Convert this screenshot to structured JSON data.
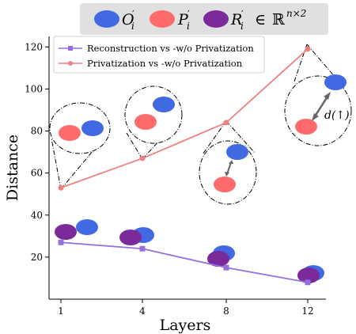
{
  "chart_data": {
    "type": "line",
    "categories": [
      "1",
      "4",
      "8",
      "12"
    ],
    "xlabel": "Layers",
    "ylabel": "Distance",
    "ylim": [
      0,
      125
    ],
    "yticks": [
      "20",
      "40",
      "60",
      "80",
      "100",
      "120"
    ],
    "legend_position": "top-left",
    "series": [
      {
        "name": "Reconstruction vs -w/o Privatization",
        "values": [
          27,
          24,
          15,
          8
        ],
        "color": "#9370DB",
        "marker": "square"
      },
      {
        "name": "Privatization vs -w/o Privatization",
        "values": [
          53,
          67,
          84,
          119
        ],
        "color": "#F08080",
        "marker": "circle"
      }
    ],
    "header_legend": {
      "items": [
        {
          "symbol": "O",
          "color": "#4169E1"
        },
        {
          "symbol": "P",
          "color": "#FF6B6B"
        },
        {
          "symbol": "R",
          "color": "#7B2A9A"
        }
      ],
      "prime": "′",
      "sub": "i",
      "membership": "∈",
      "set": "ℝ",
      "exponent": "n×2"
    },
    "annotation": {
      "text": "d(↑)"
    }
  }
}
